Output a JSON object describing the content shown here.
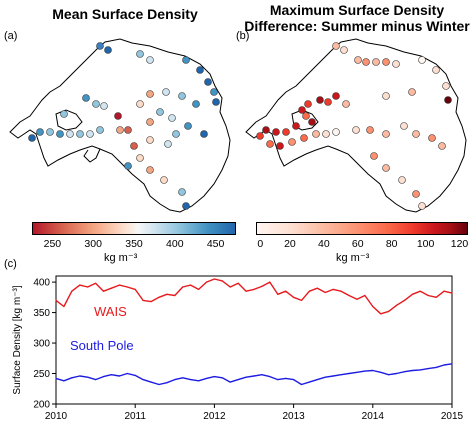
{
  "panel_a": {
    "label": "(a)",
    "title": "Mean Surface Density",
    "colorbar": {
      "ticks": [
        "250",
        "300",
        "350",
        "400",
        "450"
      ],
      "unit": "kg m⁻³",
      "range": [
        225,
        475
      ]
    }
  },
  "panel_b": {
    "label": "(b)",
    "title_line1": "Maximum Surface Density",
    "title_line2": "Difference: Summer minus Winter",
    "colorbar": {
      "ticks": [
        "0",
        "20",
        "40",
        "60",
        "80",
        "100",
        "120"
      ],
      "unit": "kg m⁻³",
      "range": [
        0,
        125
      ]
    }
  },
  "panel_c": {
    "label": "(c)",
    "ylabel": "Surface Density [kg m⁻³]"
  },
  "chart_data": {
    "type": "line",
    "title": "",
    "xlabel": "",
    "ylabel": "Surface Density [kg m⁻³]",
    "xlim": [
      2010,
      2015
    ],
    "ylim": [
      200,
      410
    ],
    "x_ticks": [
      "2010",
      "2011",
      "2012",
      "2013",
      "2014",
      "2015"
    ],
    "y_ticks": [
      "200",
      "250",
      "300",
      "350",
      "400"
    ],
    "grid": false,
    "legend": "inline-left",
    "series": [
      {
        "name": "WAIS",
        "color": "#e8191c",
        "x": [
          2010.0,
          2010.1,
          2010.2,
          2010.3,
          2010.4,
          2010.5,
          2010.6,
          2010.7,
          2010.8,
          2010.9,
          2011.0,
          2011.1,
          2011.2,
          2011.3,
          2011.4,
          2011.5,
          2011.6,
          2011.7,
          2011.8,
          2011.9,
          2012.0,
          2012.1,
          2012.2,
          2012.3,
          2012.4,
          2012.5,
          2012.6,
          2012.7,
          2012.8,
          2012.9,
          2013.0,
          2013.1,
          2013.2,
          2013.3,
          2013.4,
          2013.5,
          2013.6,
          2013.7,
          2013.8,
          2013.9,
          2014.0,
          2014.1,
          2014.2,
          2014.3,
          2014.4,
          2014.5,
          2014.6,
          2014.7,
          2014.8,
          2014.9,
          2015.0
        ],
        "y": [
          370,
          360,
          385,
          395,
          392,
          398,
          385,
          390,
          395,
          392,
          388,
          370,
          368,
          375,
          380,
          378,
          392,
          395,
          388,
          400,
          405,
          402,
          392,
          398,
          385,
          388,
          393,
          400,
          380,
          385,
          375,
          370,
          385,
          390,
          383,
          388,
          385,
          378,
          372,
          378,
          360,
          348,
          352,
          362,
          370,
          380,
          385,
          378,
          375,
          385,
          382
        ]
      },
      {
        "name": "South Pole",
        "color": "#1d1ce3",
        "x": [
          2010.0,
          2010.1,
          2010.2,
          2010.3,
          2010.4,
          2010.5,
          2010.6,
          2010.7,
          2010.8,
          2010.9,
          2011.0,
          2011.1,
          2011.2,
          2011.3,
          2011.4,
          2011.5,
          2011.6,
          2011.7,
          2011.8,
          2011.9,
          2012.0,
          2012.1,
          2012.2,
          2012.3,
          2012.4,
          2012.5,
          2012.6,
          2012.7,
          2012.8,
          2012.9,
          2013.0,
          2013.1,
          2013.2,
          2013.3,
          2013.4,
          2013.5,
          2013.6,
          2013.7,
          2013.8,
          2013.9,
          2014.0,
          2014.1,
          2014.2,
          2014.3,
          2014.4,
          2014.5,
          2014.6,
          2014.7,
          2014.8,
          2014.9,
          2015.0
        ],
        "y": [
          242,
          238,
          243,
          246,
          244,
          240,
          245,
          248,
          246,
          250,
          247,
          240,
          236,
          232,
          235,
          240,
          243,
          240,
          238,
          242,
          245,
          243,
          236,
          240,
          244,
          246,
          248,
          245,
          240,
          242,
          240,
          232,
          236,
          240,
          244,
          246,
          248,
          250,
          252,
          254,
          255,
          252,
          248,
          250,
          253,
          255,
          256,
          258,
          260,
          264,
          266
        ]
      }
    ]
  }
}
